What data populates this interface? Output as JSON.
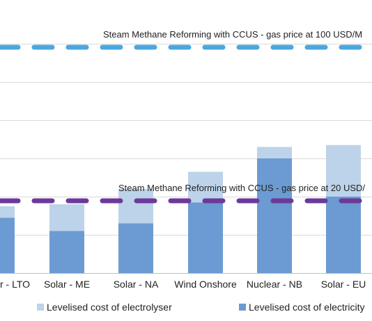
{
  "chart_data": {
    "type": "bar",
    "stacked": true,
    "categories": [
      "Solar - LTO",
      "Solar - ME",
      "Solar - NA",
      "Wind Onshore",
      "Nuclear - NB",
      "Solar - EU"
    ],
    "visible_category_text": [
      "r - LTO",
      "Solar - ME",
      "Solar - NA",
      "Wind Onshore",
      "Nuclear - NB",
      "Solar - EU"
    ],
    "series": [
      {
        "name": "Levelised cost of electricity",
        "values": [
          1.45,
          1.1,
          1.3,
          1.85,
          3.0,
          2.0
        ]
      },
      {
        "name": "Levelised cost of electrolyser",
        "values": [
          0.3,
          0.7,
          0.9,
          0.8,
          0.3,
          1.35
        ]
      }
    ],
    "reference_lines": [
      {
        "label": "Steam Methane Reforming with CCUS - gas price at 100 USD/M",
        "value": 5.9
      },
      {
        "label": "Steam Methane Reforming with CCUS - gas price at 20 USD/",
        "value": 1.9
      }
    ],
    "ylim": [
      0,
      6.6
    ],
    "grid": true,
    "legend_position": "bottom",
    "colors": {
      "electricity": "#6b9bd2",
      "electrolyser": "#bcd3ea",
      "ref_high": "#4aa8e0",
      "ref_low": "#6c3a9a",
      "grid": "#d9d9d9",
      "axis": "#bfbfbf"
    }
  }
}
